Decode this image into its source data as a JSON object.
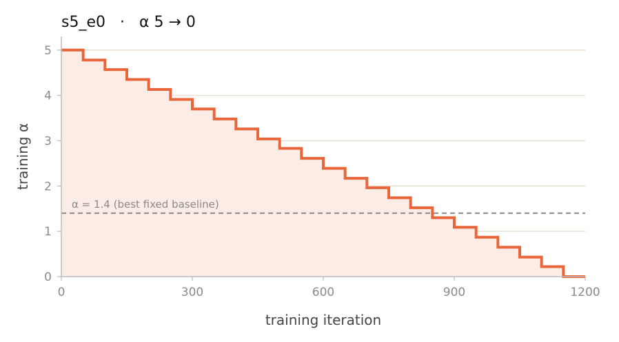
{
  "chart_data": {
    "type": "line",
    "title": "s5_e0   ·   α 5 → 0",
    "xlabel": "training iteration",
    "ylabel": "training α",
    "xlim": [
      0,
      1200
    ],
    "ylim": [
      0,
      5.3
    ],
    "xticks": [
      0,
      300,
      600,
      900,
      1200
    ],
    "yticks": [
      0,
      1,
      2,
      3,
      4,
      5
    ],
    "grid": "horizontal",
    "series": [
      {
        "step": "post",
        "color": "#e8663a",
        "fill_color": "#fcece6",
        "x": [
          0,
          50,
          100,
          150,
          200,
          250,
          300,
          350,
          400,
          450,
          500,
          550,
          600,
          650,
          700,
          750,
          800,
          850,
          900,
          950,
          1000,
          1050,
          1100,
          1150,
          1200
        ],
        "y": [
          5.0,
          4.78,
          4.57,
          4.35,
          4.13,
          3.91,
          3.7,
          3.48,
          3.26,
          3.04,
          2.83,
          2.61,
          2.39,
          2.17,
          1.96,
          1.74,
          1.52,
          1.3,
          1.09,
          0.87,
          0.65,
          0.43,
          0.22,
          0.0,
          0.0
        ]
      }
    ],
    "reference_line": {
      "y": 1.4,
      "label": "α = 1.4 (best fixed baseline)",
      "color": "#888888"
    }
  }
}
